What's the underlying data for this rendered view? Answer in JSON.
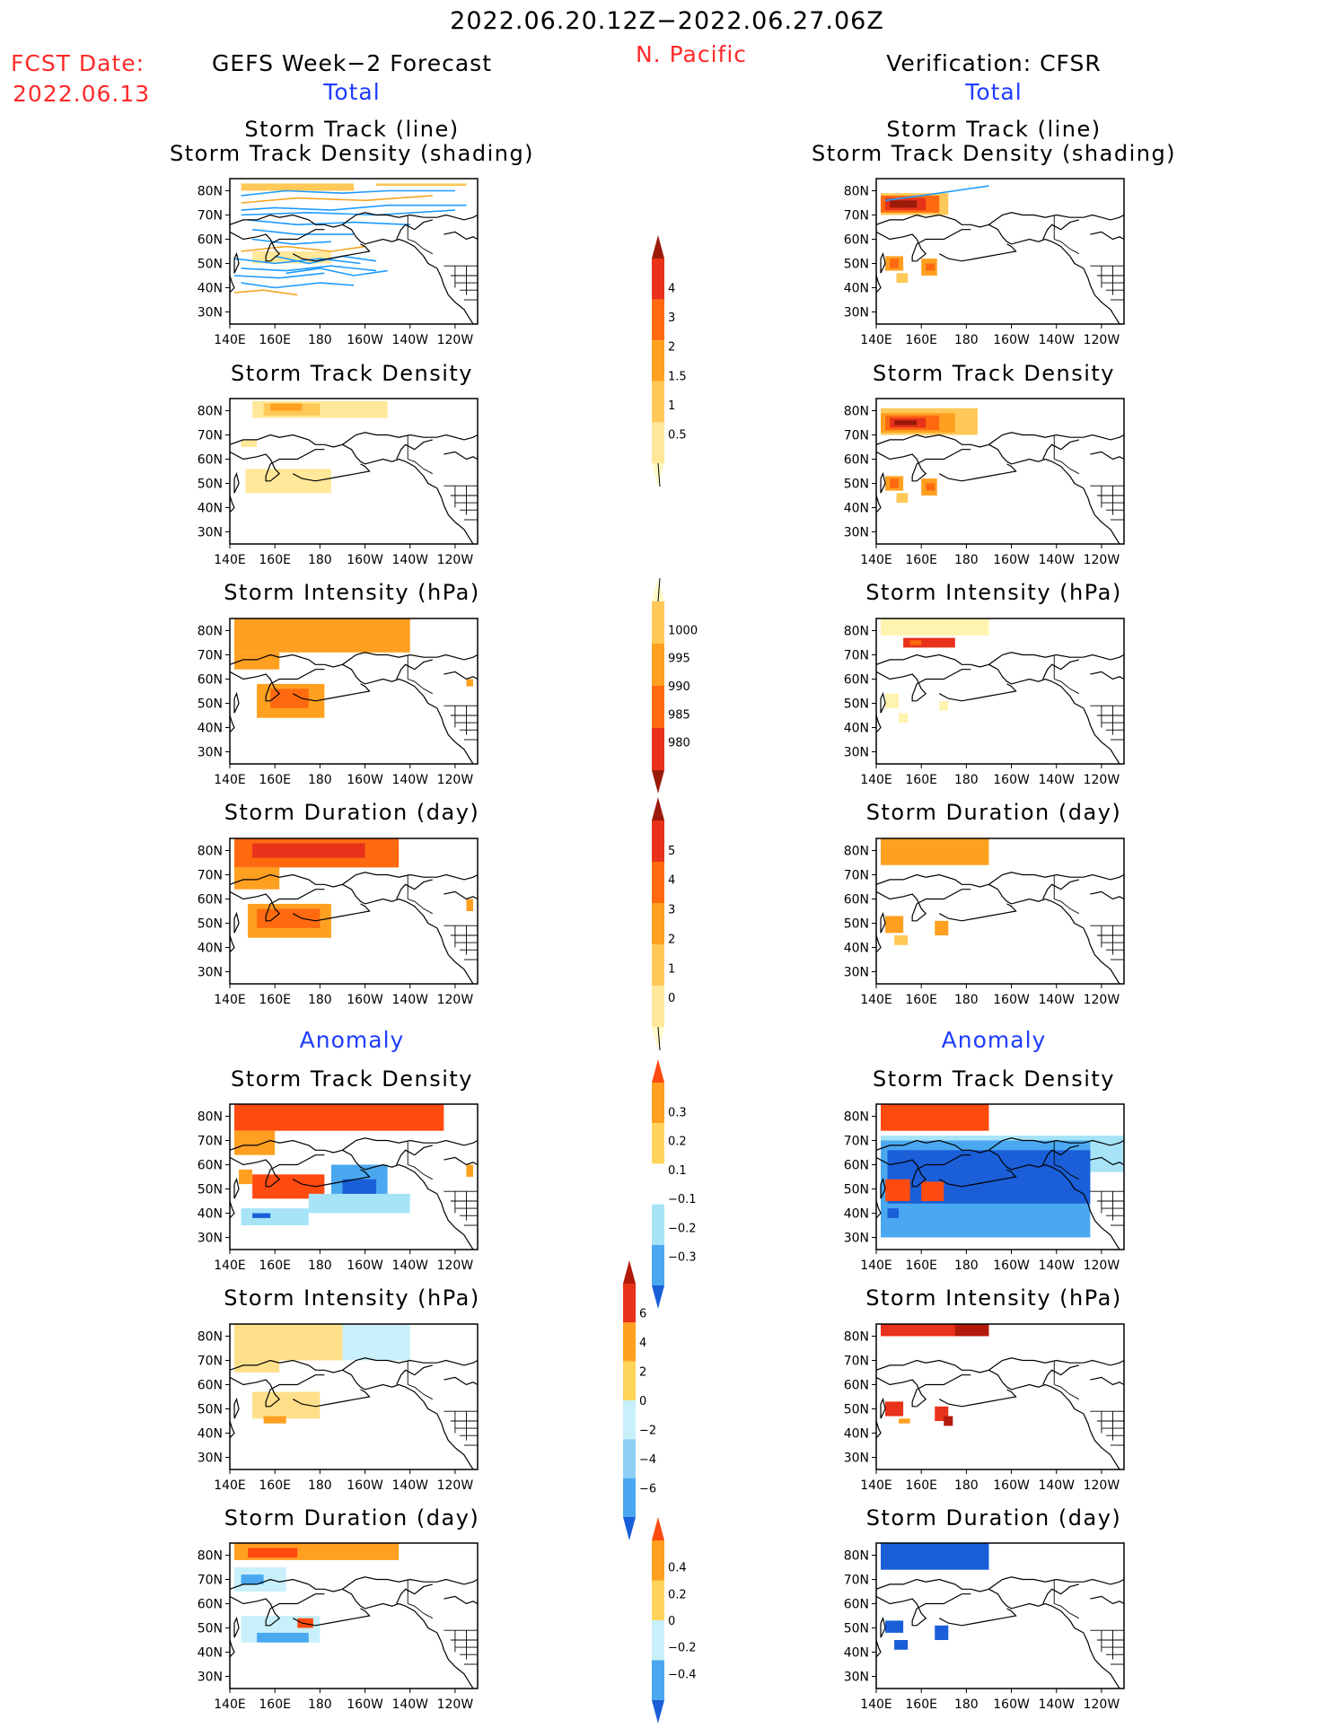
{
  "header": {
    "date_range": "2022.06.20.12Z−2022.06.27.06Z",
    "region": "N. Pacific",
    "fcst_label": "FCST Date:",
    "fcst_date": "2022.06.13",
    "left_title": "GEFS Week−2 Forecast",
    "right_title": "Verification: CFSR",
    "left_total": "Total",
    "right_total": "Total",
    "left_anomaly": "Anomaly",
    "right_anomaly": "Anomaly"
  },
  "colors": {
    "accent_red": "#ff2a2a",
    "accent_blue": "#1e3cff",
    "track_line": "#1e9bff",
    "track_line_alt": "#f5a623"
  },
  "axes": {
    "x_ticks": [
      "140E",
      "160E",
      "180",
      "160W",
      "140W",
      "120W"
    ],
    "y_ticks": [
      "80N",
      "70N",
      "60N",
      "50N",
      "40N",
      "30N"
    ],
    "lon_range": [
      140,
      250
    ],
    "lat_range": [
      25,
      85
    ]
  },
  "panel_titles": {
    "track_l1": "Storm Track (line)",
    "track_l2": "Storm Track Density (shading)",
    "density": "Storm Track Density",
    "intensity": "Storm Intensity (hPa)",
    "duration": "Storm Duration (day)"
  },
  "colorbars": {
    "density": {
      "labels": [
        "4",
        "3",
        "2",
        "1.5",
        "1",
        "0.5"
      ],
      "colors": [
        "#9b1a0a",
        "#e8321a",
        "#ff6a10",
        "#ffa020",
        "#ffc857",
        "#ffe89a",
        "#fff8c8"
      ]
    },
    "intensity": {
      "labels": [
        "1000",
        "995",
        "990",
        "985",
        "980"
      ],
      "colors": [
        "#fff8c8",
        "#ffc857",
        "#ffa020",
        "#ff6a10",
        "#e8321a",
        "#9b1a0a"
      ]
    },
    "duration": {
      "labels": [
        "5",
        "4",
        "3",
        "2",
        "1",
        "0"
      ],
      "colors": [
        "#9b1a0a",
        "#e8321a",
        "#ff6a10",
        "#ffa020",
        "#ffc857",
        "#ffe89a",
        "#fff8c8"
      ]
    },
    "anom_density": {
      "labels": [
        "0.3",
        "0.2",
        "0.1",
        "−0.1",
        "−0.2",
        "−0.3"
      ],
      "colors": [
        "#ff4a10",
        "#ffa020",
        "#ffd45a",
        "#ffffff",
        "#a8e4f8",
        "#4aa8f0",
        "#1a5ed8"
      ]
    },
    "anom_intensity": {
      "labels": [
        "6",
        "4",
        "2",
        "0",
        "−2",
        "−4",
        "−6"
      ],
      "colors": [
        "#b21a0a",
        "#e8321a",
        "#ffa020",
        "#ffd45a",
        "#c8f0fa",
        "#8ed0f4",
        "#4aa8f0",
        "#1a5ed8"
      ]
    },
    "anom_duration": {
      "labels": [
        "0.4",
        "0.2",
        "0",
        "−0.2",
        "−0.4"
      ],
      "colors": [
        "#ff4a10",
        "#ffa020",
        "#ffd45a",
        "#c8f0fa",
        "#4aa8f0",
        "#1a5ed8"
      ]
    }
  },
  "chart_data": [
    {
      "id": "L1",
      "type": "heatmap",
      "title": "Storm Track (line) / Storm Track Density (shading)",
      "side": "forecast",
      "colorbar": "density",
      "cells": [
        [
          145,
          80,
          195,
          83,
          1
        ],
        [
          205,
          82,
          245,
          83,
          1
        ],
        [
          150,
          50,
          185,
          55,
          0.5
        ]
      ],
      "tracks": [
        [
          145,
          78,
          165,
          80,
          190,
          79,
          210,
          80,
          240,
          80
        ],
        [
          145,
          75,
          170,
          77,
          200,
          76,
          230,
          78
        ],
        [
          145,
          72,
          160,
          73,
          185,
          72,
          210,
          74,
          245,
          74
        ],
        [
          145,
          70,
          175,
          71,
          205,
          70,
          240,
          72
        ],
        [
          148,
          68,
          170,
          66,
          195,
          67,
          220,
          66
        ],
        [
          150,
          64,
          170,
          62,
          195,
          62
        ],
        [
          145,
          55,
          165,
          57,
          185,
          55,
          200,
          57
        ],
        [
          142,
          52,
          160,
          50,
          180,
          52,
          198,
          50
        ],
        [
          145,
          48,
          165,
          47,
          185,
          49,
          205,
          47
        ],
        [
          142,
          45,
          162,
          44,
          182,
          46
        ],
        [
          145,
          42,
          160,
          40,
          180,
          42,
          195,
          41
        ],
        [
          142,
          38,
          155,
          39,
          170,
          37
        ],
        [
          150,
          60,
          168,
          58,
          185,
          59
        ],
        [
          160,
          53,
          175,
          50,
          190,
          53,
          205,
          51
        ],
        [
          165,
          46,
          180,
          48,
          195,
          45,
          210,
          47
        ]
      ]
    },
    {
      "id": "R1",
      "type": "heatmap",
      "title": "Storm Track (line) / Storm Track Density (shading)",
      "side": "verification",
      "colorbar": "density",
      "cells": [
        [
          142,
          70,
          172,
          79,
          1
        ],
        [
          142,
          71,
          168,
          78,
          2
        ],
        [
          144,
          72,
          162,
          77,
          3
        ],
        [
          146,
          73,
          158,
          76,
          4
        ],
        [
          144,
          47,
          152,
          53,
          1.5
        ],
        [
          146,
          48,
          150,
          52,
          2
        ],
        [
          149,
          42,
          154,
          46,
          1
        ],
        [
          160,
          45,
          167,
          52,
          1.5
        ],
        [
          162,
          47,
          166,
          50,
          2
        ]
      ],
      "tracks": [
        [
          144,
          76,
          160,
          78,
          175,
          80,
          190,
          82
        ]
      ]
    },
    {
      "id": "L2",
      "type": "heatmap",
      "title": "Storm Track Density",
      "side": "forecast",
      "colorbar": "density",
      "cells": [
        [
          150,
          77,
          210,
          84,
          0.5
        ],
        [
          155,
          78,
          180,
          83,
          1
        ],
        [
          158,
          80,
          172,
          83,
          1.5
        ],
        [
          145,
          65,
          152,
          68,
          0.5
        ],
        [
          147,
          46,
          185,
          56,
          0.5
        ],
        [
          150,
          52,
          175,
          55,
          0.5
        ]
      ],
      "tracks": []
    },
    {
      "id": "R2",
      "type": "heatmap",
      "title": "Storm Track Density",
      "side": "verification",
      "colorbar": "density",
      "cells": [
        [
          142,
          70,
          185,
          81,
          1
        ],
        [
          142,
          71,
          175,
          79,
          1.5
        ],
        [
          144,
          72,
          168,
          78,
          2
        ],
        [
          146,
          73,
          162,
          77,
          3
        ],
        [
          148,
          74,
          158,
          76,
          4
        ],
        [
          144,
          47,
          152,
          53,
          1.5
        ],
        [
          146,
          48,
          150,
          52,
          2
        ],
        [
          149,
          42,
          154,
          46,
          1
        ],
        [
          160,
          45,
          167,
          52,
          1.5
        ],
        [
          162,
          47,
          166,
          50,
          2
        ]
      ],
      "tracks": []
    },
    {
      "id": "L3",
      "type": "heatmap",
      "title": "Storm Intensity (hPa)",
      "side": "forecast",
      "colorbar": "intensity",
      "cells": [
        [
          142,
          71,
          220,
          85,
          995
        ],
        [
          142,
          72,
          200,
          83,
          995
        ],
        [
          142,
          64,
          162,
          71,
          995
        ],
        [
          152,
          44,
          182,
          58,
          995
        ],
        [
          158,
          48,
          175,
          56,
          990
        ],
        [
          160,
          50,
          168,
          54,
          990
        ],
        [
          245,
          57,
          248,
          60,
          995
        ]
      ],
      "tracks": []
    },
    {
      "id": "R3",
      "type": "heatmap",
      "title": "Storm Intensity (hPa)",
      "side": "verification",
      "colorbar": "intensity",
      "cells": [
        [
          142,
          78,
          190,
          85,
          1000
        ],
        [
          152,
          73,
          175,
          77,
          985
        ],
        [
          155,
          74,
          160,
          76,
          990
        ],
        [
          144,
          48,
          150,
          54,
          1000
        ],
        [
          150,
          42,
          154,
          46,
          1000
        ],
        [
          168,
          47,
          172,
          51,
          1000
        ]
      ],
      "tracks": []
    },
    {
      "id": "L4",
      "type": "heatmap",
      "title": "Storm Duration (day)",
      "side": "forecast",
      "colorbar": "duration",
      "cells": [
        [
          142,
          73,
          215,
          85,
          3
        ],
        [
          150,
          77,
          200,
          83,
          4
        ],
        [
          142,
          64,
          162,
          73,
          2
        ],
        [
          148,
          44,
          185,
          58,
          2
        ],
        [
          152,
          48,
          180,
          56,
          3
        ],
        [
          160,
          50,
          172,
          54,
          3
        ],
        [
          245,
          55,
          248,
          60,
          2
        ]
      ],
      "tracks": []
    },
    {
      "id": "R4",
      "type": "heatmap",
      "title": "Storm Duration (day)",
      "side": "verification",
      "colorbar": "duration",
      "cells": [
        [
          142,
          74,
          190,
          85,
          2
        ],
        [
          144,
          46,
          152,
          53,
          2
        ],
        [
          148,
          41,
          154,
          45,
          1
        ],
        [
          166,
          45,
          172,
          51,
          2
        ]
      ],
      "tracks": []
    },
    {
      "id": "L5",
      "type": "heatmap",
      "title": "Storm Track Density (Anomaly)",
      "side": "forecast",
      "colorbar": "anom_density",
      "cells": [
        [
          142,
          74,
          235,
          85,
          0.3
        ],
        [
          142,
          64,
          160,
          74,
          0.2
        ],
        [
          150,
          46,
          182,
          56,
          0.3
        ],
        [
          144,
          52,
          150,
          58,
          0.2
        ],
        [
          245,
          55,
          248,
          60,
          0.2
        ],
        [
          185,
          45,
          210,
          60,
          -0.2
        ],
        [
          175,
          40,
          220,
          48,
          -0.1
        ],
        [
          190,
          48,
          205,
          54,
          -0.3
        ],
        [
          145,
          35,
          175,
          42,
          -0.1
        ],
        [
          150,
          38,
          158,
          40,
          -0.3
        ]
      ],
      "tracks": []
    },
    {
      "id": "R5",
      "type": "heatmap",
      "title": "Storm Track Density (Anomaly)",
      "side": "verification",
      "colorbar": "anom_density",
      "cells": [
        [
          142,
          57,
          250,
          72,
          -0.1
        ],
        [
          142,
          30,
          235,
          70,
          -0.2
        ],
        [
          145,
          44,
          235,
          66,
          -0.3
        ],
        [
          142,
          74,
          190,
          85,
          0.3
        ],
        [
          144,
          45,
          155,
          54,
          0.3
        ],
        [
          160,
          45,
          170,
          53,
          0.3
        ],
        [
          145,
          38,
          150,
          42,
          -0.3
        ]
      ],
      "tracks": []
    },
    {
      "id": "L6",
      "type": "heatmap",
      "title": "Storm Intensity (hPa) (Anomaly)",
      "side": "forecast",
      "colorbar": "anom_intensity",
      "cells": [
        [
          142,
          70,
          190,
          85,
          1
        ],
        [
          190,
          70,
          220,
          85,
          -1
        ],
        [
          142,
          65,
          162,
          71,
          1
        ],
        [
          150,
          46,
          180,
          57,
          1
        ],
        [
          155,
          44,
          165,
          47,
          3
        ]
      ],
      "tracks": []
    },
    {
      "id": "R6",
      "type": "heatmap",
      "title": "Storm Intensity (hPa) (Anomaly)",
      "side": "verification",
      "colorbar": "anom_intensity",
      "cells": [
        [
          142,
          80,
          190,
          85,
          5
        ],
        [
          175,
          80,
          190,
          85,
          7
        ],
        [
          144,
          47,
          152,
          53,
          5
        ],
        [
          150,
          44,
          155,
          46,
          3
        ],
        [
          166,
          45,
          172,
          51,
          5
        ],
        [
          170,
          43,
          174,
          47,
          7
        ]
      ],
      "tracks": []
    },
    {
      "id": "L7",
      "type": "heatmap",
      "title": "Storm Duration (day) (Anomaly)",
      "side": "forecast",
      "colorbar": "anom_duration",
      "cells": [
        [
          142,
          78,
          215,
          85,
          0.2
        ],
        [
          148,
          79,
          170,
          83,
          0.3
        ],
        [
          142,
          65,
          165,
          75,
          -0.1
        ],
        [
          145,
          44,
          180,
          55,
          -0.1
        ],
        [
          152,
          44,
          175,
          48,
          -0.3
        ],
        [
          170,
          50,
          177,
          54,
          0.3
        ],
        [
          145,
          68,
          155,
          72,
          -0.3
        ]
      ],
      "tracks": []
    },
    {
      "id": "R7",
      "type": "heatmap",
      "title": "Storm Duration (day) (Anomaly)",
      "side": "verification",
      "colorbar": "anom_duration",
      "cells": [
        [
          142,
          74,
          190,
          85,
          -0.5
        ],
        [
          144,
          48,
          152,
          53,
          -0.5
        ],
        [
          148,
          41,
          154,
          45,
          -0.5
        ],
        [
          166,
          45,
          172,
          51,
          -0.5
        ]
      ],
      "tracks": []
    }
  ]
}
